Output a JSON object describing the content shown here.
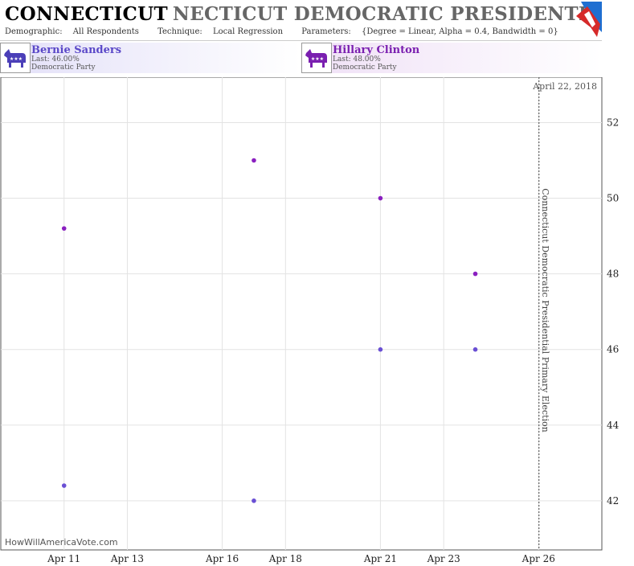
{
  "header": {
    "title_main": "CONNECTICUT",
    "title_rest": "NECTICUT DEMOCRATIC PRESIDENTIAL PRIMAR",
    "demographic_label": "Demographic:",
    "demographic_value": "All Respondents",
    "technique_label": "Technique:",
    "technique_value": "Local Regression",
    "parameters_label": "Parameters:",
    "parameters_value": "{Degree = Linear, Alpha = 0.4, Bandwidth = 0}"
  },
  "candidates": [
    {
      "name": "Bernie Sanders",
      "last": "Last: 46.00%",
      "party": "Democratic Party",
      "color": "#6a4fd4"
    },
    {
      "name": "Hillary Clinton",
      "last": "Last: 48.00%",
      "party": "Democratic Party",
      "color": "#8a1fc0"
    }
  ],
  "chart_data": {
    "type": "scatter",
    "x_ticks": [
      "Apr 11",
      "Apr 13",
      "Apr 16",
      "Apr 18",
      "Apr 21",
      "Apr 23",
      "Apr 26"
    ],
    "y_ticks": [
      42,
      44,
      46,
      48,
      50,
      52
    ],
    "ylim": [
      40.7,
      53.2
    ],
    "xlim": [
      "2016-04-09",
      "2016-04-28"
    ],
    "series": [
      {
        "name": "Bernie Sanders",
        "color": "#6a4fd4",
        "points": [
          {
            "x": "2016-04-11",
            "y": 42.4
          },
          {
            "x": "2016-04-17",
            "y": 42.0
          },
          {
            "x": "2016-04-21",
            "y": 46.0
          },
          {
            "x": "2016-04-24",
            "y": 46.0
          }
        ]
      },
      {
        "name": "Hillary Clinton",
        "color": "#8a1fc0",
        "points": [
          {
            "x": "2016-04-11",
            "y": 49.2
          },
          {
            "x": "2016-04-17",
            "y": 51.0
          },
          {
            "x": "2016-04-21",
            "y": 50.0
          },
          {
            "x": "2016-04-24",
            "y": 48.0
          }
        ]
      }
    ],
    "event_line": {
      "x": "2016-04-26",
      "label": "Connecticut Democratic Presidential Primary Election"
    },
    "date_annotation": "April 22, 2018",
    "watermark": "HowWillAmericaVote.com"
  }
}
